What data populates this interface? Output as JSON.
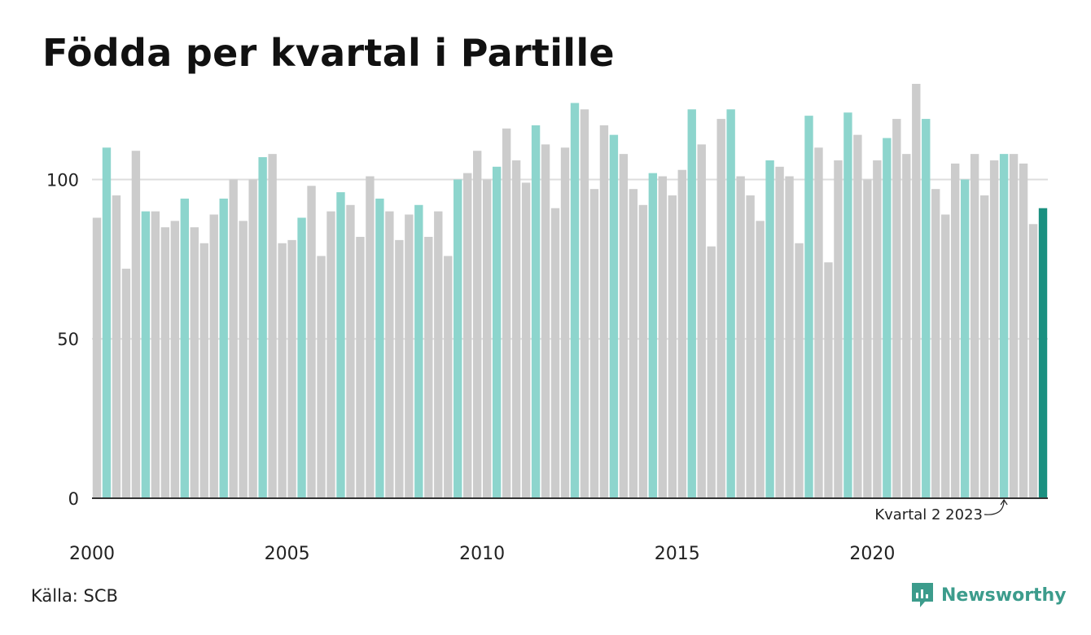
{
  "title": "Födda per kvartal i Partille",
  "source": "Källa: SCB",
  "brand": {
    "name": "Newsworthy",
    "icon": "newsworthy-logo-icon"
  },
  "colors": {
    "highlight": "#8dd5cd",
    "other": "#cccccc",
    "latest": "#1a9080",
    "grid": "#dddddd",
    "axis": "#333333",
    "brand": "#3c9c8c"
  },
  "chart_data": {
    "type": "bar",
    "title": "Födda per kvartal i Partille",
    "xlabel": "",
    "ylabel": "",
    "ylim": [
      0,
      130
    ],
    "yticks": [
      0,
      50,
      100
    ],
    "xtick_labels": [
      "2000",
      "2005",
      "2010",
      "2015",
      "2020"
    ],
    "grid": true,
    "highlighted_quarter": 2,
    "start_year": 2000,
    "values": [
      88,
      110,
      95,
      72,
      109,
      90,
      90,
      85,
      87,
      94,
      85,
      80,
      89,
      94,
      100,
      87,
      100,
      107,
      108,
      80,
      81,
      88,
      98,
      76,
      90,
      96,
      92,
      82,
      101,
      94,
      90,
      81,
      89,
      92,
      82,
      90,
      76,
      100,
      102,
      109,
      100,
      104,
      116,
      106,
      99,
      117,
      111,
      91,
      110,
      124,
      122,
      97,
      117,
      114,
      108,
      97,
      92,
      102,
      101,
      95,
      103,
      122,
      111,
      79,
      119,
      122,
      101,
      95,
      87,
      106,
      104,
      101,
      80,
      120,
      110,
      74,
      106,
      121,
      114,
      100,
      106,
      113,
      119,
      108,
      130,
      119,
      97,
      89,
      105,
      100,
      108,
      95,
      106,
      108,
      108,
      105,
      86,
      91
    ],
    "annotation": {
      "text": "Kvartal 2 2023",
      "target_index": 93
    }
  }
}
